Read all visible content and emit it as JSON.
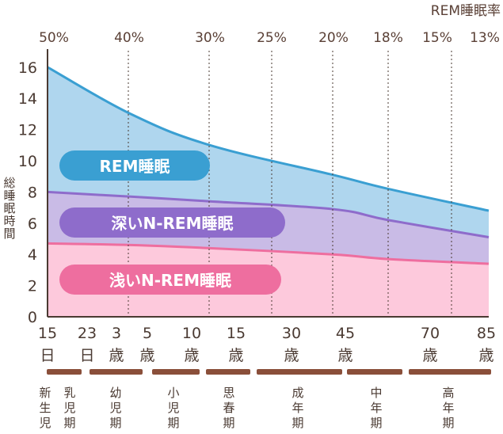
{
  "chart_data": {
    "type": "area",
    "ylabel": "総睡眠時間",
    "rate_axis_label": "REM睡眠率",
    "ylim": [
      0,
      16
    ],
    "y_ticks": [
      "0",
      "2",
      "4",
      "6",
      "8",
      "10",
      "12",
      "14",
      "16"
    ],
    "x_ticks": [
      {
        "num": "15",
        "unit": "日"
      },
      {
        "num": "23",
        "unit": "日"
      },
      {
        "num": "3",
        "unit": "歳"
      },
      {
        "num": "5",
        "unit": "歳"
      },
      {
        "num": "10",
        "unit": "歳"
      },
      {
        "num": "15",
        "unit": "歳"
      },
      {
        "num": "30",
        "unit": "歳"
      },
      {
        "num": "45",
        "unit": "歳"
      },
      {
        "num": "70",
        "unit": "歳"
      },
      {
        "num": "85",
        "unit": "歳"
      }
    ],
    "rem_rates": [
      "50%",
      "40%",
      "30%",
      "25%",
      "20%",
      "18%",
      "15%",
      "13%"
    ],
    "series": [
      {
        "name": "REM睡眠",
        "color": "#3a9fd2",
        "fill": "#afd6ee",
        "values": [
          16.0,
          13.0,
          11.0,
          9.1,
          8.2,
          6.8
        ]
      },
      {
        "name": "深いN-REM睡眠",
        "color": "#8e6ccb",
        "fill": "#c9bbe6",
        "values": [
          8.0,
          7.7,
          7.4,
          6.9,
          6.2,
          5.1
        ]
      },
      {
        "name": "浅いN-REM睡眠",
        "color": "#ee6e9f",
        "fill": "#fdc9dc",
        "values": [
          4.7,
          4.6,
          4.4,
          4.0,
          3.7,
          3.4
        ]
      }
    ],
    "life_stages": [
      "新生児",
      "乳児期",
      "幼児期",
      "小児期",
      "思春期",
      "成年期",
      "中年期",
      "高年期"
    ]
  }
}
